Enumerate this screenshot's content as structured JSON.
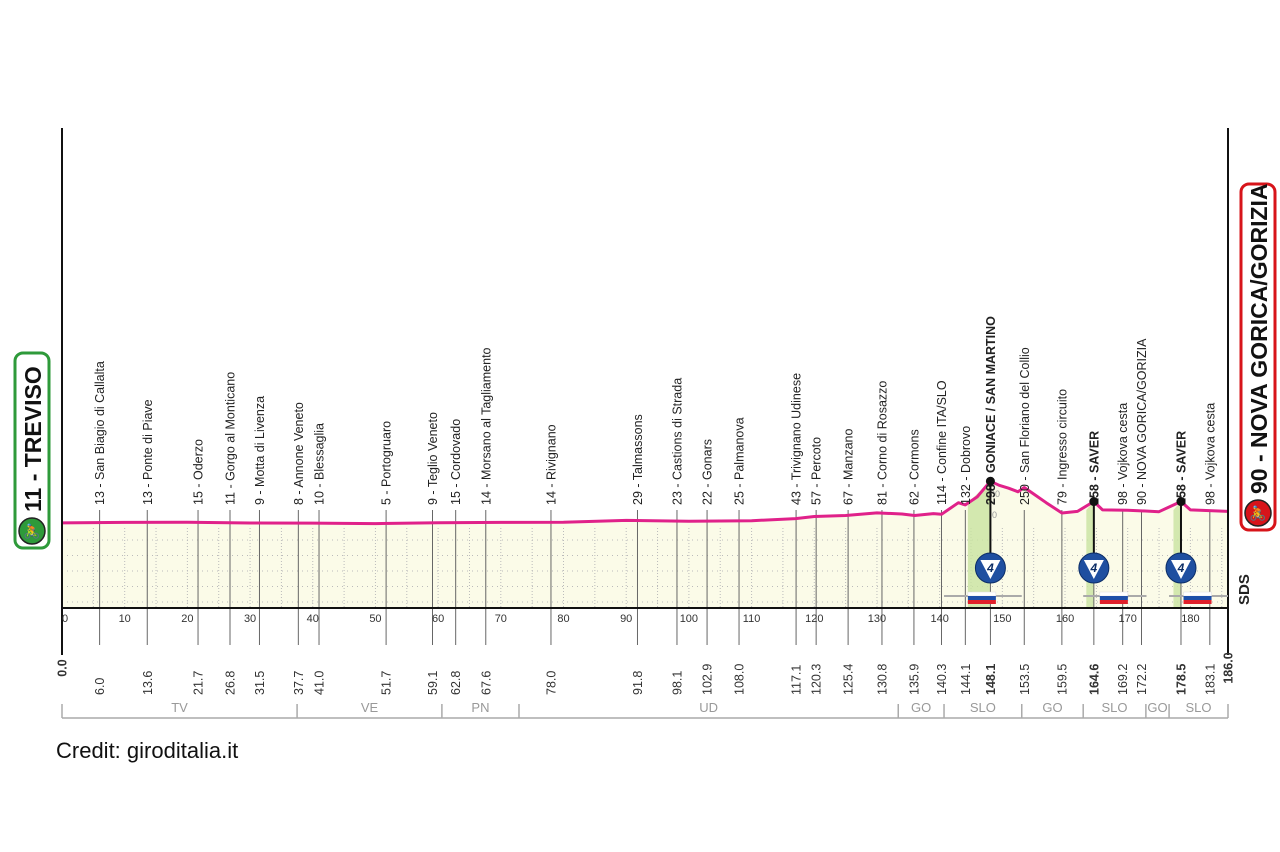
{
  "chart_data": {
    "type": "area",
    "title": "",
    "xlabel": "",
    "ylabel": "",
    "xlim": [
      0,
      186
    ],
    "x_ticks": [
      0,
      10,
      20,
      30,
      40,
      50,
      60,
      70,
      80,
      90,
      100,
      110,
      120,
      130,
      140,
      150,
      160,
      170,
      180
    ],
    "y_tick_labels": [
      "200",
      "0"
    ],
    "start": {
      "elevation": 11,
      "name": "TREVISO",
      "label": "11 - TREVISO",
      "color": "#2e9a3a"
    },
    "finish": {
      "elevation": 90,
      "name": "NOVA GORICA/GORIZIA",
      "label": "90 - NOVA GORICA/GORIZIA",
      "color": "#d7141a"
    },
    "line_color": "#e0218a",
    "fill_color": "#fbfbe8",
    "waypoints": [
      {
        "km": 0.0,
        "elevation": 11,
        "name": "TREVISO",
        "bold": true,
        "endpoint": true
      },
      {
        "km": 6.0,
        "elevation": 13,
        "name": "San Biagio di Callalta"
      },
      {
        "km": 13.6,
        "elevation": 13,
        "name": "Ponte di Piave"
      },
      {
        "km": 21.7,
        "elevation": 15,
        "name": "Oderzo"
      },
      {
        "km": 26.8,
        "elevation": 11,
        "name": "Gorgo al Monticano"
      },
      {
        "km": 31.5,
        "elevation": 9,
        "name": "Motta di Livenza"
      },
      {
        "km": 37.7,
        "elevation": 8,
        "name": "Annone Veneto"
      },
      {
        "km": 41.0,
        "elevation": 10,
        "name": "Blessaglia"
      },
      {
        "km": 51.7,
        "elevation": 5,
        "name": "Portogruaro"
      },
      {
        "km": 59.1,
        "elevation": 9,
        "name": "Teglio Veneto"
      },
      {
        "km": 62.8,
        "elevation": 15,
        "name": "Cordovado"
      },
      {
        "km": 67.6,
        "elevation": 14,
        "name": "Morsano al Tagliamento"
      },
      {
        "km": 78.0,
        "elevation": 14,
        "name": "Rivignano"
      },
      {
        "km": 91.8,
        "elevation": 29,
        "name": "Talmassons"
      },
      {
        "km": 98.1,
        "elevation": 23,
        "name": "Castions di Strada"
      },
      {
        "km": 102.9,
        "elevation": 22,
        "name": "Gonars"
      },
      {
        "km": 108.0,
        "elevation": 25,
        "name": "Palmanova"
      },
      {
        "km": 117.1,
        "elevation": 43,
        "name": "Trivignano Udinese"
      },
      {
        "km": 120.3,
        "elevation": 57,
        "name": "Percoto"
      },
      {
        "km": 125.4,
        "elevation": 67,
        "name": "Manzano"
      },
      {
        "km": 130.8,
        "elevation": 81,
        "name": "Corno di Rosazzo"
      },
      {
        "km": 135.9,
        "elevation": 62,
        "name": "Cormons"
      },
      {
        "km": 140.3,
        "elevation": 114,
        "name": "Confine ITA/SLO"
      },
      {
        "km": 144.1,
        "elevation": 132,
        "name": "Dobrovo"
      },
      {
        "km": 148.1,
        "elevation": 298,
        "name": "GONIACE / SAN MARTINO",
        "bold": true,
        "climb_category": 4
      },
      {
        "km": 153.5,
        "elevation": 250,
        "name": "San Floriano del Collio"
      },
      {
        "km": 159.5,
        "elevation": 79,
        "name": "Ingresso circuito"
      },
      {
        "km": 164.6,
        "elevation": 158,
        "name": "SAVER",
        "bold": true,
        "climb_category": 4
      },
      {
        "km": 169.2,
        "elevation": 98,
        "name": "Vojkova cesta"
      },
      {
        "km": 172.2,
        "elevation": 90,
        "name": "NOVA GORICA/GORIZIA"
      },
      {
        "km": 178.5,
        "elevation": 158,
        "name": "SAVER",
        "bold": true,
        "climb_category": 4
      },
      {
        "km": 183.1,
        "elevation": 98,
        "name": "Vojkova cesta"
      },
      {
        "km": 186.0,
        "elevation": 90,
        "name": "NOVA GORICA/GORIZIA",
        "bold": true,
        "endpoint": true
      }
    ],
    "profile": [
      [
        0,
        11
      ],
      [
        10,
        14
      ],
      [
        20,
        15
      ],
      [
        30,
        10
      ],
      [
        40,
        9
      ],
      [
        50,
        6
      ],
      [
        60,
        12
      ],
      [
        70,
        14
      ],
      [
        80,
        15
      ],
      [
        90,
        28
      ],
      [
        100,
        22
      ],
      [
        110,
        26
      ],
      [
        117,
        40
      ],
      [
        120,
        55
      ],
      [
        125,
        62
      ],
      [
        130,
        80
      ],
      [
        134,
        72
      ],
      [
        136,
        62
      ],
      [
        138,
        70
      ],
      [
        139,
        75
      ],
      [
        140.3,
        70
      ],
      [
        143,
        150
      ],
      [
        144.1,
        135
      ],
      [
        146,
        190
      ],
      [
        148.1,
        298
      ],
      [
        149.5,
        270
      ],
      [
        151,
        250
      ],
      [
        152.5,
        225
      ],
      [
        153.5,
        255
      ],
      [
        155,
        210
      ],
      [
        157,
        150
      ],
      [
        159.5,
        79
      ],
      [
        162,
        90
      ],
      [
        164.6,
        158
      ],
      [
        166,
        100
      ],
      [
        170,
        98
      ],
      [
        175,
        88
      ],
      [
        178.5,
        158
      ],
      [
        180,
        100
      ],
      [
        186,
        90
      ]
    ],
    "provinces": [
      {
        "label": "TV",
        "from": 0,
        "to": 37.5
      },
      {
        "label": "VE",
        "from": 37.5,
        "to": 60.6
      },
      {
        "label": "PN",
        "from": 60.6,
        "to": 72.9
      },
      {
        "label": "UD",
        "from": 72.9,
        "to": 133.4
      },
      {
        "label": "GO",
        "from": 133.4,
        "to": 140.7
      },
      {
        "label": "SLO",
        "from": 140.7,
        "to": 153.1
      },
      {
        "label": "GO",
        "from": 153.1,
        "to": 162.9
      },
      {
        "label": "SLO",
        "from": 162.9,
        "to": 172.9
      },
      {
        "label": "GO",
        "from": 172.9,
        "to": 176.6
      },
      {
        "label": "SLO",
        "from": 176.6,
        "to": 186
      }
    ],
    "slovenia_segments": [
      [
        140.7,
        153.1
      ],
      [
        162.9,
        173
      ],
      [
        176.6,
        186
      ]
    ]
  },
  "logo_text": "SDS",
  "credit": "Credit: giroditalia.it"
}
